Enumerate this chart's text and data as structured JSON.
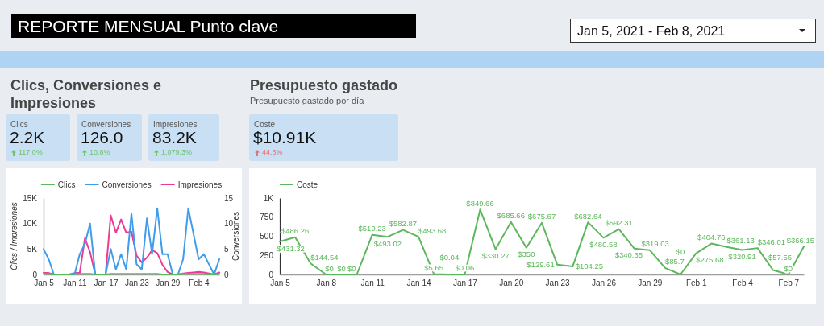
{
  "chart_data": [
    {
      "type": "other",
      "title": "REPORTE MENSUAL Punto clave",
      "annotations": [
        "Jan 5, 2021 - Feb 8, 2021"
      ]
    },
    {
      "type": "other",
      "title": "Clics, Conversiones e Impresiones",
      "annotations": [
        "Clics",
        "2.2K",
        "117.0%",
        "Conversiones",
        "126.0",
        "10.6%",
        "Impresiones",
        "83.2K",
        "1,079.3%"
      ],
      "colors": [
        "#6cc46c",
        "#6cc46c",
        "#6cc46c"
      ]
    },
    {
      "type": "line",
      "x": [
        "2021-01-05",
        "2021-01-06",
        "2021-01-07",
        "2021-01-08",
        "2021-01-09",
        "2021-01-10",
        "2021-01-11",
        "2021-01-12",
        "2021-01-13",
        "2021-01-14",
        "2021-01-15",
        "2021-01-16",
        "2021-01-17",
        "2021-01-18",
        "2021-01-19",
        "2021-01-20",
        "2021-01-21",
        "2021-01-22",
        "2021-01-23",
        "2021-01-24",
        "2021-01-25",
        "2021-01-26",
        "2021-01-27",
        "2021-01-28",
        "2021-01-29",
        "2021-01-30",
        "2021-01-31",
        "2021-02-01",
        "2021-02-02",
        "2021-02-03",
        "2021-02-04",
        "2021-02-05",
        "2021-02-06",
        "2021-02-07",
        "2021-02-08"
      ],
      "xlim": [
        "2021-01-05",
        "2021-02-08"
      ],
      "xticks": [
        {
          "value": "2021-01-05",
          "label": "Jan 5"
        },
        {
          "value": "2021-01-11",
          "label": "Jan 11"
        },
        {
          "value": "2021-01-17",
          "label": "Jan 17"
        },
        {
          "value": "2021-01-23",
          "label": "Jan 23"
        },
        {
          "value": "2021-01-29",
          "label": "Jan 29"
        },
        {
          "value": "2021-02-04",
          "label": "Feb 4"
        }
      ],
      "ylim": [
        0,
        15000
      ],
      "yticks": [
        0,
        {
          "value": 5000,
          "label": "5K"
        },
        {
          "value": 10000,
          "label": "10K"
        },
        {
          "value": 15000,
          "label": "15K"
        }
      ],
      "y2lim": [
        0,
        15
      ],
      "y2ticks": [
        0,
        5,
        10,
        15
      ],
      "ylabel": "Clics / Impresiones",
      "y2label": "Conversiones",
      "legend": "top",
      "series": [
        {
          "name": "Clics",
          "color": "#5cb85c",
          "values": [
            100,
            100,
            0,
            0,
            0,
            0,
            100,
            100,
            100,
            100,
            0,
            0,
            0,
            100,
            100,
            100,
            100,
            100,
            100,
            100,
            100,
            100,
            100,
            0,
            0,
            0,
            0,
            100,
            100,
            100,
            100,
            100,
            0,
            0,
            100
          ]
        },
        {
          "name": "Conversiones",
          "color": "#3f9cec",
          "axis": "y2",
          "values": [
            5,
            3,
            0,
            0,
            0,
            0,
            0,
            4,
            6,
            10,
            0,
            0,
            0,
            5,
            1,
            4,
            1,
            12,
            2,
            1,
            11,
            4,
            13,
            4,
            4,
            0,
            0,
            3,
            13,
            8,
            3,
            4,
            2,
            0,
            3
          ]
        },
        {
          "name": "Impresiones",
          "color": "#ec3a96",
          "values": [
            300,
            300,
            0,
            0,
            0,
            0,
            300,
            300,
            7100,
            4400,
            0,
            0,
            0,
            11600,
            8200,
            10800,
            8200,
            8400,
            3700,
            2400,
            3300,
            4800,
            4200,
            1900,
            500,
            0,
            0,
            200,
            300,
            400,
            500,
            400,
            200,
            0,
            400
          ]
        }
      ]
    },
    {
      "type": "other",
      "title": "Presupuesto gastado",
      "subtitle": "Presupuesto gastado por día",
      "annotations": [
        "Coste",
        "$10.91K",
        "44.3%"
      ],
      "colors": [
        "#e57373"
      ]
    },
    {
      "type": "line",
      "x": [
        "2021-01-05",
        "2021-01-06",
        "2021-01-07",
        "2021-01-08",
        "2021-01-09",
        "2021-01-10",
        "2021-01-11",
        "2021-01-12",
        "2021-01-13",
        "2021-01-14",
        "2021-01-15",
        "2021-01-16",
        "2021-01-17",
        "2021-01-18",
        "2021-01-19",
        "2021-01-20",
        "2021-01-21",
        "2021-01-22",
        "2021-01-23",
        "2021-01-24",
        "2021-01-25",
        "2021-01-26",
        "2021-01-27",
        "2021-01-28",
        "2021-01-29",
        "2021-01-30",
        "2021-01-31",
        "2021-02-01",
        "2021-02-02",
        "2021-02-03",
        "2021-02-04",
        "2021-02-05",
        "2021-02-06",
        "2021-02-07",
        "2021-02-08"
      ],
      "xlim": [
        "2021-01-05",
        "2021-02-08"
      ],
      "xticks": [
        {
          "value": "2021-01-05",
          "label": "Jan 5"
        },
        {
          "value": "2021-01-08",
          "label": "Jan 8"
        },
        {
          "value": "2021-01-11",
          "label": "Jan 11"
        },
        {
          "value": "2021-01-14",
          "label": "Jan 14"
        },
        {
          "value": "2021-01-17",
          "label": "Jan 17"
        },
        {
          "value": "2021-01-20",
          "label": "Jan 20"
        },
        {
          "value": "2021-01-23",
          "label": "Jan 23"
        },
        {
          "value": "2021-01-26",
          "label": "Jan 26"
        },
        {
          "value": "2021-01-29",
          "label": "Jan 29"
        },
        {
          "value": "2021-02-01",
          "label": "Feb 1"
        },
        {
          "value": "2021-02-04",
          "label": "Feb 4"
        },
        {
          "value": "2021-02-07",
          "label": "Feb 7"
        }
      ],
      "ylim": [
        0,
        1000
      ],
      "yticks": [
        0,
        250,
        500,
        750,
        {
          "value": 1000,
          "label": "1K"
        }
      ],
      "legend": "top left",
      "series": [
        {
          "name": "Coste",
          "color": "#5cb85c",
          "values": [
            431.32,
            486.26,
            144.54,
            0,
            0,
            0,
            519.23,
            493.02,
            582.87,
            493.68,
            5.65,
            0.04,
            0.06,
            849.66,
            330.27,
            685.66,
            350,
            675.67,
            129.61,
            104.25,
            682.64,
            480.58,
            592.31,
            340.35,
            319.03,
            85.7,
            0,
            275.68,
            404.76,
            361.13,
            320.91,
            346.01,
            57.55,
            0,
            366.15
          ],
          "value_labels": [
            "$431.32",
            "$486.26",
            "$144.54",
            "$0",
            "$0",
            "$0",
            "$519.23",
            "$493.02",
            "$582.87",
            "$493.68",
            "$5.65",
            "$0.04",
            "$0.06",
            "$849.66",
            "$330.27",
            "$685.66",
            "$350",
            "$675.67",
            "$129.61",
            "$104.25",
            "$682.64",
            "$480.58",
            "$592.31",
            "$340.35",
            "$319.03",
            "$85.7",
            "$0",
            "$275.68",
            "$404.76",
            "$361.13",
            "$320.91",
            "$346.01",
            "$57.55",
            "$0",
            "$366.15"
          ]
        }
      ]
    }
  ]
}
